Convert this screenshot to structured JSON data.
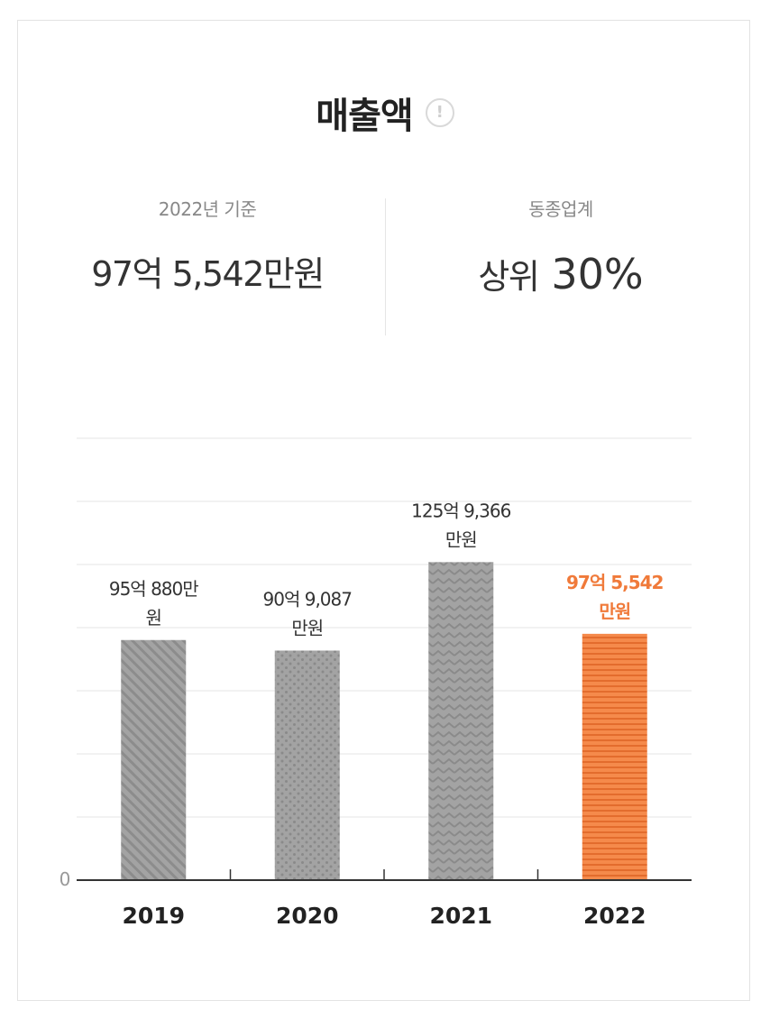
{
  "header": {
    "title": "매출액",
    "info_icon": "!"
  },
  "stats": {
    "base_label": "2022년 기준",
    "base_value": "97억 5,542만원",
    "industry_label": "동종업계",
    "industry_rank_prefix": "상위",
    "industry_rank_value": "30%"
  },
  "chart_data": {
    "type": "bar",
    "categories": [
      "2019",
      "2020",
      "2021",
      "2022"
    ],
    "values": [
      95.088,
      90.9087,
      125.9366,
      97.5542
    ],
    "value_unit": "억원",
    "data_labels": [
      [
        "95억 880만",
        "원"
      ],
      [
        "90억 9,087",
        "만원"
      ],
      [
        "125억 9,366",
        "만원"
      ],
      [
        "97억 5,542",
        "만원"
      ]
    ],
    "y_tick_label": "0",
    "ylim": [
      0,
      175
    ],
    "gridlines": 7,
    "grid": true,
    "highlight_index": 3,
    "colors": {
      "bar": "#a0a0a0",
      "bar_pattern": "#8a8a8a",
      "highlight": "#f58a4b",
      "highlight_pattern": "#e56f30",
      "highlight_label": "#f07a3a",
      "label": "#333333",
      "grid": "#e6e6e6",
      "axis": "#333333"
    },
    "patterns": [
      "diagonal",
      "dots",
      "zigzag",
      "horizontal"
    ],
    "title": "",
    "xlabel": "",
    "ylabel": ""
  }
}
